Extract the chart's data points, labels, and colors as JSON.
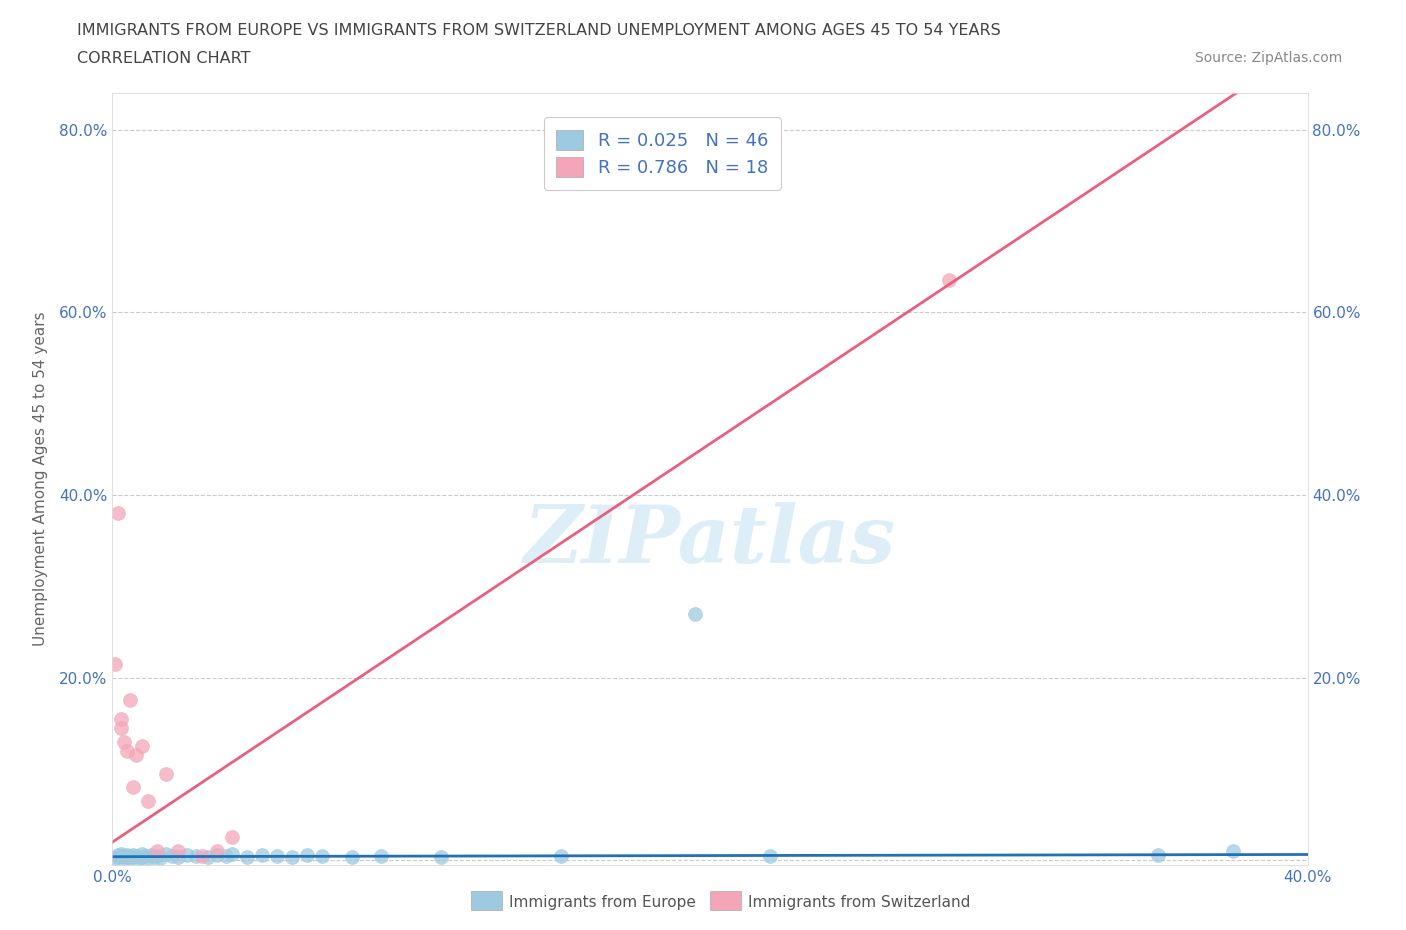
{
  "title_line1": "IMMIGRANTS FROM EUROPE VS IMMIGRANTS FROM SWITZERLAND UNEMPLOYMENT AMONG AGES 45 TO 54 YEARS",
  "title_line2": "CORRELATION CHART",
  "source_text": "Source: ZipAtlas.com",
  "ylabel": "Unemployment Among Ages 45 to 54 years",
  "xlim": [
    0.0,
    0.4
  ],
  "ylim": [
    -0.005,
    0.84
  ],
  "xticks": [
    0.0,
    0.05,
    0.1,
    0.15,
    0.2,
    0.25,
    0.3,
    0.35,
    0.4
  ],
  "xticklabels": [
    "0.0%",
    "",
    "",
    "",
    "",
    "",
    "",
    "",
    "40.0%"
  ],
  "yticks": [
    0.0,
    0.2,
    0.4,
    0.6,
    0.8
  ],
  "ytick_labels_left": [
    "",
    "20.0%",
    "40.0%",
    "60.0%",
    "80.0%"
  ],
  "ytick_labels_right": [
    "",
    "20.0%",
    "40.0%",
    "60.0%",
    "80.0%"
  ],
  "blue_color": "#9ecae1",
  "pink_color": "#f4a6b8",
  "trend_blue": "#2171b5",
  "trend_pink": "#e8607a",
  "axis_text_color": "#4472c4",
  "title_color": "#444444",
  "source_color": "#888888",
  "watermark": "ZIPatlas",
  "watermark_color": "#ddeef8",
  "legend_blue_label": "Immigrants from Europe",
  "legend_pink_label": "Immigrants from Switzerland",
  "R_blue": 0.025,
  "N_blue": 46,
  "R_pink": 0.786,
  "N_pink": 18,
  "blue_x": [
    0.001,
    0.002,
    0.002,
    0.003,
    0.003,
    0.004,
    0.004,
    0.005,
    0.005,
    0.006,
    0.006,
    0.007,
    0.007,
    0.008,
    0.009,
    0.01,
    0.01,
    0.011,
    0.012,
    0.013,
    0.014,
    0.015,
    0.016,
    0.018,
    0.02,
    0.022,
    0.025,
    0.028,
    0.032,
    0.035,
    0.038,
    0.04,
    0.045,
    0.05,
    0.055,
    0.06,
    0.065,
    0.07,
    0.08,
    0.09,
    0.11,
    0.15,
    0.195,
    0.22,
    0.35,
    0.375
  ],
  "blue_y": [
    0.003,
    0.004,
    0.006,
    0.005,
    0.007,
    0.003,
    0.005,
    0.004,
    0.006,
    0.003,
    0.005,
    0.004,
    0.006,
    0.005,
    0.003,
    0.004,
    0.007,
    0.005,
    0.003,
    0.006,
    0.004,
    0.005,
    0.003,
    0.007,
    0.005,
    0.004,
    0.006,
    0.005,
    0.004,
    0.006,
    0.005,
    0.007,
    0.004,
    0.006,
    0.005,
    0.004,
    0.006,
    0.005,
    0.004,
    0.005,
    0.004,
    0.005,
    0.27,
    0.005,
    0.006,
    0.01
  ],
  "pink_x": [
    0.001,
    0.002,
    0.003,
    0.003,
    0.004,
    0.005,
    0.006,
    0.007,
    0.008,
    0.01,
    0.012,
    0.015,
    0.018,
    0.022,
    0.03,
    0.035,
    0.04,
    0.28
  ],
  "pink_y": [
    0.215,
    0.38,
    0.145,
    0.155,
    0.13,
    0.12,
    0.175,
    0.08,
    0.115,
    0.125,
    0.065,
    0.01,
    0.095,
    0.01,
    0.005,
    0.01,
    0.025,
    0.635
  ],
  "trend_blue_slope": 0.006,
  "trend_blue_intercept": 0.004,
  "trend_pink_slope": 2.18,
  "trend_pink_intercept": 0.02
}
